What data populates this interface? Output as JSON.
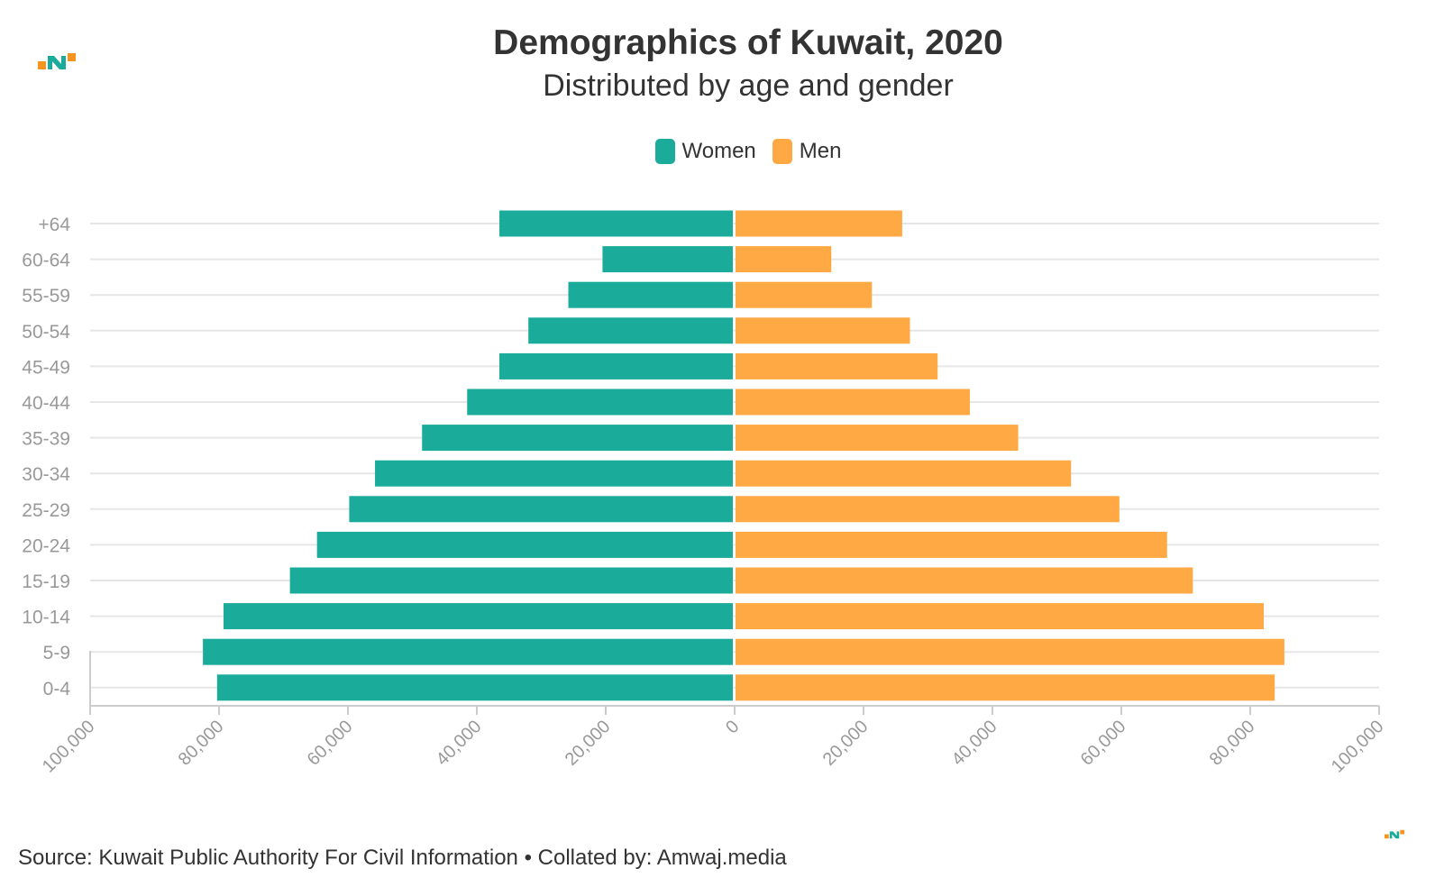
{
  "header": {
    "title": "Demographics of Kuwait, 2020",
    "subtitle": "Distributed by age and gender"
  },
  "footer": {
    "source": "Source: Kuwait Public Authority For Civil Information • Collated by: Amwaj.media"
  },
  "colors": {
    "women": "#1aab9b",
    "men": "#ffa944",
    "logo_teal": "#1aab9b",
    "logo_orange": "#f7941d"
  },
  "chart_data": {
    "type": "bar",
    "orientation": "horizontal",
    "title": "Demographics of Kuwait, 2020",
    "subtitle": "Distributed by age and gender",
    "legend_position": "top-center",
    "grid": true,
    "categories": [
      "+64",
      "60-64",
      "55-59",
      "50-54",
      "45-49",
      "40-44",
      "35-39",
      "30-34",
      "25-29",
      "20-24",
      "15-19",
      "10-14",
      "5-9",
      "0-4"
    ],
    "series": [
      {
        "name": "Women",
        "color": "#1aab9b",
        "values": [
          36500,
          20500,
          25800,
          32000,
          36500,
          41500,
          48500,
          55800,
          59800,
          64800,
          69000,
          79300,
          82500,
          80300
        ]
      },
      {
        "name": "Men",
        "color": "#ffa944",
        "values": [
          26000,
          15000,
          21300,
          27200,
          31500,
          36500,
          44000,
          52200,
          59700,
          67100,
          71100,
          82100,
          85300,
          83800
        ]
      }
    ],
    "xlim": [
      -100000,
      100000
    ],
    "xticks": [
      -100000,
      -80000,
      -60000,
      -40000,
      -20000,
      0,
      20000,
      40000,
      60000,
      80000,
      100000
    ],
    "xtick_labels": [
      "100,000",
      "80,000",
      "60,000",
      "40,000",
      "20,000",
      "0",
      "20,000",
      "40,000",
      "60,000",
      "80,000",
      "100,000"
    ],
    "xlabel": "",
    "ylabel": ""
  }
}
